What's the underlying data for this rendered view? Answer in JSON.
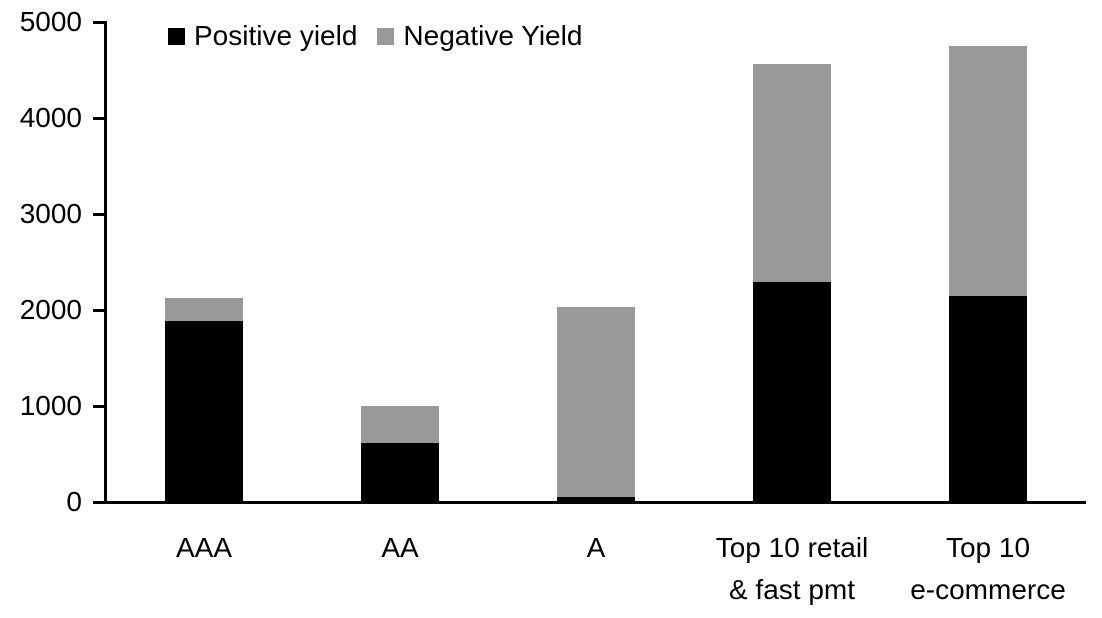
{
  "chart_data": {
    "type": "bar",
    "stacked": true,
    "title": "",
    "xlabel": "",
    "ylabel": "",
    "ylim": [
      0,
      5000
    ],
    "ytick_interval": 1000,
    "yticks": [
      0,
      1000,
      2000,
      3000,
      4000,
      5000
    ],
    "grid": false,
    "legend_position": "top-left-inside",
    "background_color": "#ffffff",
    "axis_color": "#000000",
    "categories": [
      {
        "label": "AAA",
        "lines": [
          "AAA"
        ]
      },
      {
        "label": "AA",
        "lines": [
          "AA"
        ]
      },
      {
        "label": "A",
        "lines": [
          "A"
        ]
      },
      {
        "label": "Top 10 retail & fast pmt",
        "lines": [
          "Top 10 retail",
          "& fast pmt"
        ]
      },
      {
        "label": "Top 10 e-commerce",
        "lines": [
          "Top 10",
          "e-commerce"
        ]
      }
    ],
    "series": [
      {
        "name": "Positive yield",
        "color": "#000000",
        "values": [
          1890,
          610,
          50,
          2290,
          2150
        ]
      },
      {
        "name": "Negative Yield",
        "color": "#999999",
        "values": [
          230,
          390,
          1985,
          2270,
          2600
        ]
      }
    ],
    "totals": [
      2120,
      1000,
      2035,
      4560,
      4750
    ]
  }
}
